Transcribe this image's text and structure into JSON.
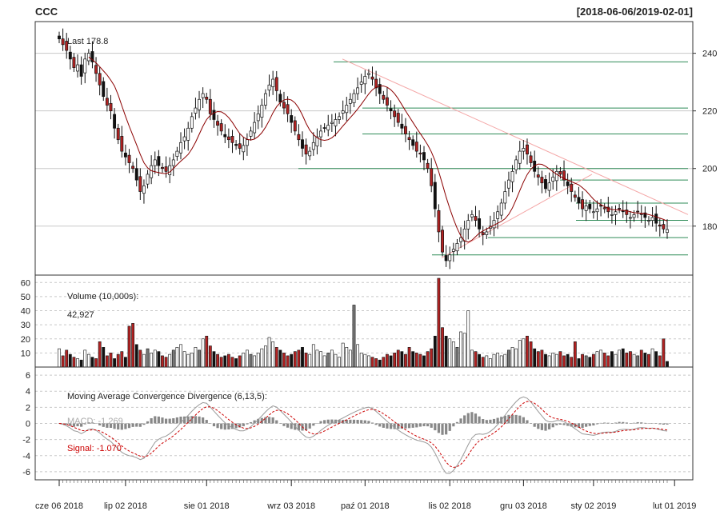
{
  "chart_data": {
    "type": "candlestick",
    "title": "CCC",
    "date_range_label": "[2018-06-06/2019-02-01]",
    "last_label": "Last 178.8",
    "price_axis": {
      "ticks": [
        180,
        200,
        220,
        240
      ],
      "ylim": [
        163,
        251
      ]
    },
    "x_ticks": [
      {
        "label": "cze 06 2018",
        "index": 0
      },
      {
        "label": "lip 02 2018",
        "index": 18
      },
      {
        "label": "sie 01 2018",
        "index": 40
      },
      {
        "label": "wrz 03 2018",
        "index": 63
      },
      {
        "label": "paź 01 2018",
        "index": 83
      },
      {
        "label": "lis 02 2018",
        "index": 106
      },
      {
        "label": "gru 03 2018",
        "index": 126
      },
      {
        "label": "sty 02 2019",
        "index": 145
      },
      {
        "label": "lut 01 2019",
        "index": 167
      }
    ],
    "close": [
      245,
      243,
      241,
      238,
      235,
      236,
      232,
      238,
      240,
      237,
      233,
      229,
      225,
      222,
      220,
      214,
      210,
      206,
      204,
      202,
      200,
      196,
      192,
      194,
      198,
      201,
      203,
      201,
      200,
      199,
      201,
      203,
      206,
      209,
      211,
      214,
      218,
      221,
      224,
      226,
      224,
      219,
      217,
      215,
      213,
      211,
      210,
      209,
      208,
      207,
      208,
      210,
      213,
      216,
      219,
      222,
      226,
      229,
      231,
      227,
      223,
      221,
      219,
      216,
      213,
      210,
      207,
      205,
      206,
      209,
      211,
      213,
      214,
      215,
      216,
      217,
      218,
      220,
      222,
      224,
      226,
      228,
      230,
      232,
      233,
      231,
      228,
      226,
      224,
      222,
      220,
      218,
      216,
      214,
      212,
      210,
      208,
      206,
      205,
      203,
      200,
      194,
      186,
      178,
      171,
      168,
      170,
      172,
      174,
      176,
      179,
      182,
      184,
      182,
      179,
      177,
      178,
      180,
      182,
      185,
      188,
      192,
      196,
      199,
      203,
      206,
      207,
      205,
      202,
      199,
      197,
      195,
      193,
      195,
      197,
      199,
      198,
      196,
      194,
      192,
      190,
      188,
      186,
      187,
      186,
      185,
      186,
      187,
      186,
      185,
      184,
      185,
      186,
      185,
      184,
      183,
      184,
      185,
      184,
      183,
      182,
      183,
      181,
      180,
      179,
      178.8
    ],
    "sma": [
      null,
      null,
      null,
      null,
      null,
      null,
      null,
      null,
      null,
      null,
      null,
      null,
      null,
      null,
      null,
      null,
      null,
      null,
      null,
      null,
      null,
      null,
      null,
      null,
      null,
      null,
      null,
      null,
      null,
      null,
      null,
      null,
      null,
      null,
      null,
      null,
      null,
      null,
      null,
      null,
      null,
      null,
      null,
      null,
      null,
      null,
      null,
      null,
      null,
      null,
      null,
      null,
      null,
      null,
      null,
      null,
      null,
      null,
      null,
      null,
      null,
      null,
      null,
      null,
      null,
      null,
      null,
      null,
      null,
      null,
      null,
      null,
      null,
      null,
      null,
      null,
      null,
      null,
      null,
      null,
      null,
      null,
      null,
      null,
      null,
      null,
      null,
      null,
      null,
      null,
      null,
      null,
      null,
      null,
      null,
      null,
      null,
      null,
      null,
      null,
      null,
      null,
      null,
      null,
      null,
      null,
      null,
      null,
      null,
      null,
      null,
      null,
      null,
      null,
      null,
      null,
      null,
      null,
      null,
      null,
      null,
      null,
      null,
      null,
      null,
      null,
      null,
      null,
      null,
      null,
      null,
      null,
      null,
      null,
      null,
      null,
      null,
      null,
      null,
      null,
      null,
      null,
      null,
      null,
      null,
      null,
      null,
      null,
      null,
      null,
      null,
      null,
      null,
      null,
      null,
      null,
      null,
      null,
      null,
      null,
      null,
      null,
      null,
      null,
      null,
      null
    ],
    "horizontal_levels": [
      237,
      221,
      212,
      200,
      196,
      188,
      182,
      176,
      170
    ],
    "volume": {
      "label": "Volume (10,000s):",
      "last": "42,927",
      "ticks": [
        10,
        20,
        30,
        40,
        50,
        60
      ],
      "ylim": [
        0,
        63
      ],
      "values": [
        13,
        8,
        12,
        9,
        7,
        6,
        5,
        12,
        9,
        7,
        6,
        18,
        14,
        8,
        10,
        6,
        9,
        11,
        7,
        29,
        31,
        16,
        12,
        9,
        13,
        10,
        12,
        11,
        8,
        7,
        9,
        12,
        14,
        16,
        11,
        9,
        10,
        14,
        12,
        20,
        22,
        15,
        11,
        9,
        7,
        8,
        9,
        7,
        6,
        8,
        10,
        12,
        9,
        8,
        10,
        13,
        15,
        21,
        18,
        14,
        12,
        10,
        8,
        9,
        11,
        12,
        14,
        10,
        9,
        16,
        12,
        11,
        8,
        10,
        12,
        9,
        7,
        17,
        14,
        12,
        44,
        16,
        10,
        9,
        8,
        7,
        6,
        5,
        7,
        9,
        8,
        10,
        12,
        11,
        9,
        14,
        11,
        10,
        9,
        8,
        11,
        13,
        22,
        63,
        28,
        22,
        20,
        18,
        14,
        25,
        24,
        40,
        12,
        11,
        9,
        7,
        8,
        6,
        9,
        10,
        8,
        9,
        12,
        14,
        13,
        19,
        20,
        22,
        18,
        13,
        11,
        12,
        9,
        8,
        10,
        9,
        11,
        8,
        9,
        7,
        18,
        6,
        9,
        8,
        7,
        9,
        11,
        12,
        10,
        8,
        11,
        9,
        12,
        13,
        10,
        11,
        9,
        8,
        12,
        10,
        9,
        13,
        11,
        8,
        20,
        4
      ],
      "color_down": "#b22222",
      "color_up": "#ffffff",
      "color_flat": "#111111"
    },
    "macd": {
      "label": "Moving Average Convergence Divergence (6,13,5):",
      "macd_label": "MACD: -1.269",
      "signal_label": "Signal: -1.070",
      "ticks": [
        -6,
        -4,
        -2,
        0,
        2,
        4,
        6
      ],
      "ylim": [
        -7,
        7
      ],
      "macd_color": "#999999",
      "signal_color": "#cc0000"
    },
    "colors": {
      "candle_up": "#ffffff",
      "candle_down": "#b22222",
      "candle_black": "#111111",
      "sma": "#8b0000",
      "levels": "#2e8b57",
      "trend": "#f4a6a6"
    }
  }
}
